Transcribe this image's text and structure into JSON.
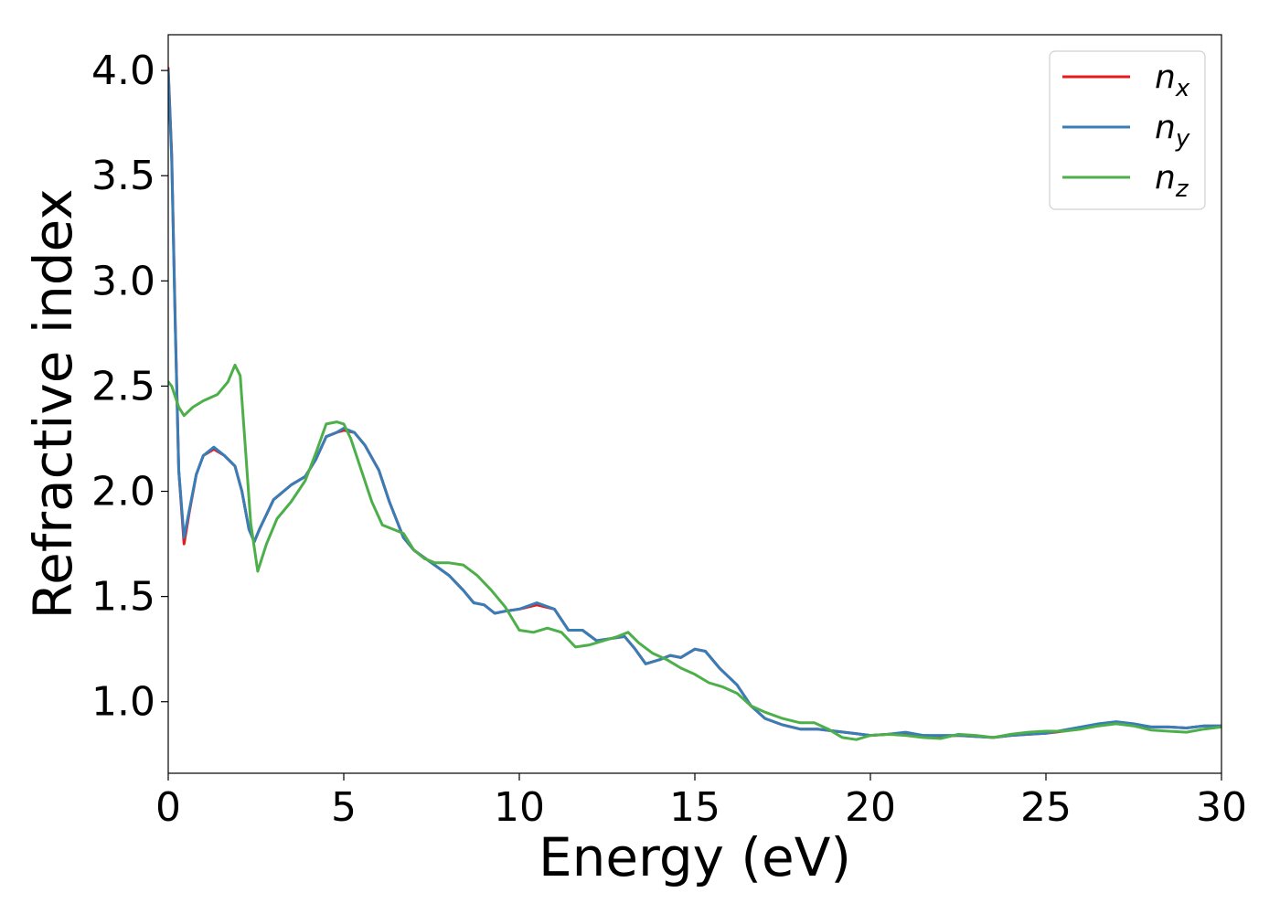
{
  "chart_data": {
    "type": "line",
    "title": "",
    "xlabel": "Energy (eV)",
    "ylabel": "Refractive index",
    "xlim": [
      0,
      30
    ],
    "ylim": [
      0.66,
      4.17
    ],
    "xticks": [
      0,
      5,
      10,
      15,
      20,
      25,
      30
    ],
    "xtick_labels": [
      "0",
      "5",
      "10",
      "15",
      "20",
      "25",
      "30"
    ],
    "yticks": [
      1.0,
      1.5,
      2.0,
      2.5,
      3.0,
      3.5,
      4.0
    ],
    "ytick_labels": [
      "1.0",
      "1.5",
      "2.0",
      "2.5",
      "3.0",
      "3.5",
      "4.0"
    ],
    "grid": false,
    "legend_position": "top-right",
    "series": [
      {
        "name": "n_x",
        "legend_base": "n",
        "legend_sub": "x",
        "color": "#e41a1c",
        "points": [
          [
            0,
            4.01
          ],
          [
            0.1,
            3.6
          ],
          [
            0.2,
            2.8
          ],
          [
            0.3,
            2.1
          ],
          [
            0.45,
            1.75
          ],
          [
            0.6,
            1.9
          ],
          [
            0.8,
            2.08
          ],
          [
            1.0,
            2.17
          ],
          [
            1.3,
            2.2
          ],
          [
            1.6,
            2.17
          ],
          [
            1.9,
            2.12
          ],
          [
            2.1,
            2.0
          ],
          [
            2.3,
            1.82
          ],
          [
            2.45,
            1.76
          ],
          [
            2.6,
            1.82
          ],
          [
            3.0,
            1.96
          ],
          [
            3.5,
            2.03
          ],
          [
            3.9,
            2.07
          ],
          [
            4.2,
            2.15
          ],
          [
            4.5,
            2.26
          ],
          [
            4.8,
            2.28
          ],
          [
            5.0,
            2.29
          ],
          [
            5.3,
            2.28
          ],
          [
            5.6,
            2.22
          ],
          [
            6.0,
            2.1
          ],
          [
            6.3,
            1.95
          ],
          [
            6.7,
            1.78
          ],
          [
            7.0,
            1.72
          ],
          [
            7.5,
            1.66
          ],
          [
            8.0,
            1.6
          ],
          [
            8.4,
            1.53
          ],
          [
            8.7,
            1.47
          ],
          [
            9.0,
            1.46
          ],
          [
            9.3,
            1.42
          ],
          [
            9.6,
            1.43
          ],
          [
            10.0,
            1.44
          ],
          [
            10.5,
            1.46
          ],
          [
            11.0,
            1.44
          ],
          [
            11.4,
            1.34
          ],
          [
            11.8,
            1.34
          ],
          [
            12.2,
            1.29
          ],
          [
            12.6,
            1.3
          ],
          [
            13.0,
            1.31
          ],
          [
            13.3,
            1.25
          ],
          [
            13.6,
            1.18
          ],
          [
            14.0,
            1.2
          ],
          [
            14.3,
            1.22
          ],
          [
            14.6,
            1.21
          ],
          [
            15.0,
            1.25
          ],
          [
            15.3,
            1.24
          ],
          [
            15.7,
            1.16
          ],
          [
            16.2,
            1.08
          ],
          [
            16.6,
            0.98
          ],
          [
            17.0,
            0.92
          ],
          [
            17.5,
            0.89
          ],
          [
            18.0,
            0.87
          ],
          [
            18.5,
            0.87
          ],
          [
            19.0,
            0.86
          ],
          [
            19.5,
            0.85
          ],
          [
            20.0,
            0.84
          ],
          [
            20.5,
            0.845
          ],
          [
            21.0,
            0.85
          ],
          [
            21.5,
            0.84
          ],
          [
            22.0,
            0.835
          ],
          [
            22.5,
            0.84
          ],
          [
            23.0,
            0.835
          ],
          [
            23.5,
            0.83
          ],
          [
            24.0,
            0.84
          ],
          [
            24.5,
            0.845
          ],
          [
            25.0,
            0.85
          ],
          [
            25.5,
            0.86
          ],
          [
            26.0,
            0.875
          ],
          [
            26.5,
            0.89
          ],
          [
            27.0,
            0.9
          ],
          [
            27.5,
            0.89
          ],
          [
            28.0,
            0.88
          ],
          [
            28.5,
            0.88
          ],
          [
            29.0,
            0.875
          ],
          [
            29.5,
            0.885
          ],
          [
            30.0,
            0.885
          ]
        ]
      },
      {
        "name": "n_y",
        "legend_base": "n",
        "legend_sub": "y",
        "color": "#377eb8",
        "points": [
          [
            0,
            4.0
          ],
          [
            0.1,
            3.58
          ],
          [
            0.2,
            2.78
          ],
          [
            0.3,
            2.1
          ],
          [
            0.45,
            1.78
          ],
          [
            0.6,
            1.91
          ],
          [
            0.8,
            2.08
          ],
          [
            1.0,
            2.17
          ],
          [
            1.3,
            2.21
          ],
          [
            1.6,
            2.17
          ],
          [
            1.9,
            2.12
          ],
          [
            2.1,
            2.0
          ],
          [
            2.3,
            1.82
          ],
          [
            2.45,
            1.76
          ],
          [
            2.6,
            1.82
          ],
          [
            3.0,
            1.96
          ],
          [
            3.5,
            2.03
          ],
          [
            3.9,
            2.07
          ],
          [
            4.2,
            2.15
          ],
          [
            4.5,
            2.26
          ],
          [
            4.8,
            2.28
          ],
          [
            5.0,
            2.3
          ],
          [
            5.3,
            2.28
          ],
          [
            5.6,
            2.22
          ],
          [
            6.0,
            2.1
          ],
          [
            6.3,
            1.95
          ],
          [
            6.7,
            1.78
          ],
          [
            7.0,
            1.72
          ],
          [
            7.5,
            1.66
          ],
          [
            8.0,
            1.6
          ],
          [
            8.4,
            1.53
          ],
          [
            8.7,
            1.47
          ],
          [
            9.0,
            1.46
          ],
          [
            9.3,
            1.42
          ],
          [
            9.6,
            1.43
          ],
          [
            10.0,
            1.44
          ],
          [
            10.5,
            1.47
          ],
          [
            11.0,
            1.44
          ],
          [
            11.4,
            1.34
          ],
          [
            11.8,
            1.34
          ],
          [
            12.2,
            1.29
          ],
          [
            12.6,
            1.3
          ],
          [
            13.0,
            1.31
          ],
          [
            13.3,
            1.25
          ],
          [
            13.6,
            1.18
          ],
          [
            14.0,
            1.2
          ],
          [
            14.3,
            1.22
          ],
          [
            14.6,
            1.21
          ],
          [
            15.0,
            1.25
          ],
          [
            15.3,
            1.24
          ],
          [
            15.7,
            1.16
          ],
          [
            16.2,
            1.08
          ],
          [
            16.6,
            0.98
          ],
          [
            17.0,
            0.92
          ],
          [
            17.5,
            0.89
          ],
          [
            18.0,
            0.87
          ],
          [
            18.5,
            0.87
          ],
          [
            19.0,
            0.86
          ],
          [
            19.5,
            0.85
          ],
          [
            20.0,
            0.84
          ],
          [
            20.5,
            0.845
          ],
          [
            21.0,
            0.855
          ],
          [
            21.5,
            0.84
          ],
          [
            22.0,
            0.84
          ],
          [
            22.5,
            0.84
          ],
          [
            23.0,
            0.835
          ],
          [
            23.5,
            0.83
          ],
          [
            24.0,
            0.84
          ],
          [
            24.5,
            0.845
          ],
          [
            25.0,
            0.85
          ],
          [
            25.5,
            0.865
          ],
          [
            26.0,
            0.88
          ],
          [
            26.5,
            0.895
          ],
          [
            27.0,
            0.905
          ],
          [
            27.5,
            0.895
          ],
          [
            28.0,
            0.88
          ],
          [
            28.5,
            0.88
          ],
          [
            29.0,
            0.875
          ],
          [
            29.5,
            0.885
          ],
          [
            30.0,
            0.885
          ]
        ]
      },
      {
        "name": "n_z",
        "legend_base": "n",
        "legend_sub": "z",
        "color": "#4daf4a",
        "points": [
          [
            0,
            2.52
          ],
          [
            0.1,
            2.5
          ],
          [
            0.3,
            2.4
          ],
          [
            0.45,
            2.36
          ],
          [
            0.7,
            2.4
          ],
          [
            1.0,
            2.43
          ],
          [
            1.4,
            2.46
          ],
          [
            1.7,
            2.52
          ],
          [
            1.9,
            2.6
          ],
          [
            2.05,
            2.55
          ],
          [
            2.2,
            2.2
          ],
          [
            2.35,
            1.85
          ],
          [
            2.55,
            1.62
          ],
          [
            2.8,
            1.75
          ],
          [
            3.1,
            1.87
          ],
          [
            3.5,
            1.95
          ],
          [
            3.9,
            2.05
          ],
          [
            4.2,
            2.18
          ],
          [
            4.5,
            2.32
          ],
          [
            4.8,
            2.33
          ],
          [
            5.0,
            2.32
          ],
          [
            5.2,
            2.25
          ],
          [
            5.5,
            2.1
          ],
          [
            5.8,
            1.95
          ],
          [
            6.1,
            1.84
          ],
          [
            6.4,
            1.82
          ],
          [
            6.7,
            1.8
          ],
          [
            7.0,
            1.72
          ],
          [
            7.3,
            1.68
          ],
          [
            7.6,
            1.66
          ],
          [
            8.0,
            1.66
          ],
          [
            8.4,
            1.65
          ],
          [
            8.8,
            1.6
          ],
          [
            9.2,
            1.53
          ],
          [
            9.6,
            1.45
          ],
          [
            10.0,
            1.34
          ],
          [
            10.4,
            1.33
          ],
          [
            10.8,
            1.35
          ],
          [
            11.2,
            1.33
          ],
          [
            11.6,
            1.26
          ],
          [
            12.0,
            1.27
          ],
          [
            12.4,
            1.29
          ],
          [
            12.8,
            1.31
          ],
          [
            13.1,
            1.33
          ],
          [
            13.4,
            1.28
          ],
          [
            13.8,
            1.23
          ],
          [
            14.2,
            1.2
          ],
          [
            14.6,
            1.16
          ],
          [
            15.0,
            1.13
          ],
          [
            15.4,
            1.09
          ],
          [
            15.8,
            1.07
          ],
          [
            16.2,
            1.04
          ],
          [
            16.6,
            0.98
          ],
          [
            17.0,
            0.95
          ],
          [
            17.5,
            0.92
          ],
          [
            18.0,
            0.9
          ],
          [
            18.4,
            0.9
          ],
          [
            18.8,
            0.87
          ],
          [
            19.2,
            0.83
          ],
          [
            19.6,
            0.82
          ],
          [
            20.0,
            0.84
          ],
          [
            20.5,
            0.845
          ],
          [
            21.0,
            0.84
          ],
          [
            21.5,
            0.83
          ],
          [
            22.0,
            0.825
          ],
          [
            22.5,
            0.845
          ],
          [
            23.0,
            0.84
          ],
          [
            23.5,
            0.83
          ],
          [
            24.0,
            0.845
          ],
          [
            24.5,
            0.855
          ],
          [
            25.0,
            0.86
          ],
          [
            25.5,
            0.86
          ],
          [
            26.0,
            0.87
          ],
          [
            26.5,
            0.885
          ],
          [
            27.0,
            0.895
          ],
          [
            27.5,
            0.885
          ],
          [
            28.0,
            0.865
          ],
          [
            28.5,
            0.86
          ],
          [
            29.0,
            0.855
          ],
          [
            29.5,
            0.87
          ],
          [
            30.0,
            0.88
          ]
        ]
      }
    ]
  }
}
